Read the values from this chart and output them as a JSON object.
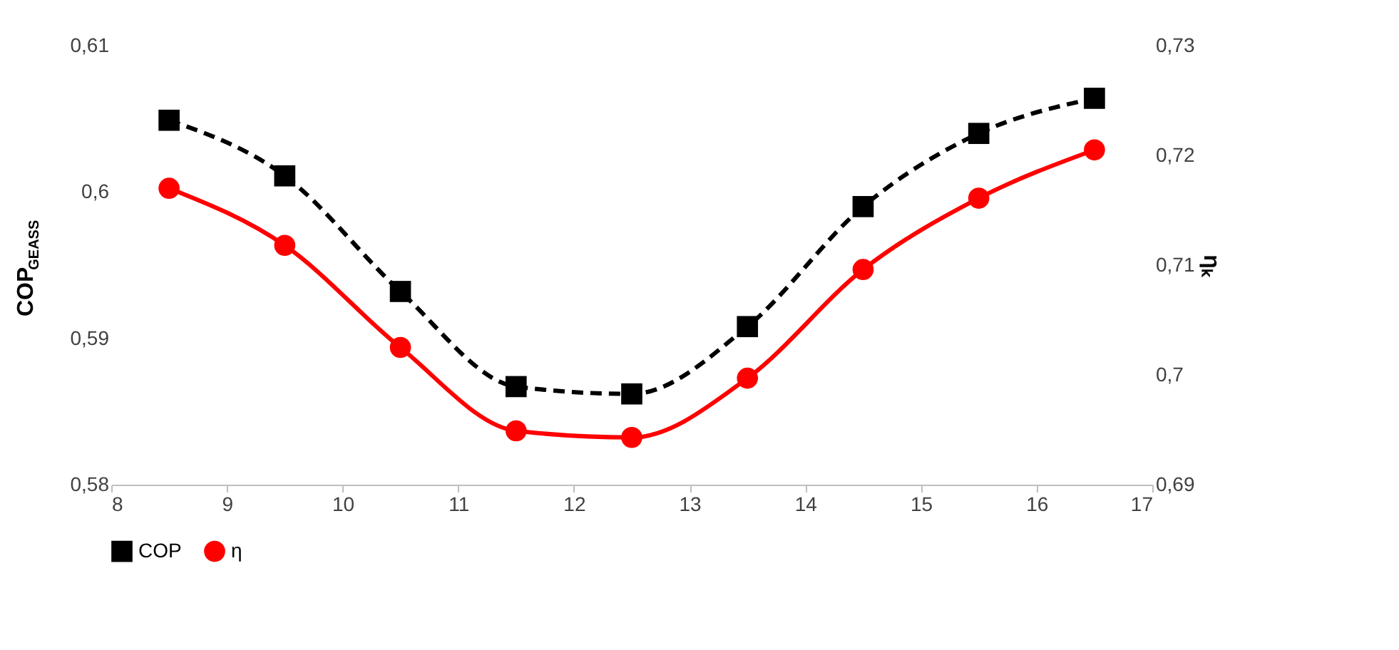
{
  "chart_data": {
    "type": "line",
    "ylabel": "COP$_{GEASS}$",
    "y2label": "ηₖ",
    "x": [
      8.5,
      9.5,
      10.5,
      11.5,
      12.5,
      13.5,
      14.5,
      15.5,
      16.5
    ],
    "xlim": [
      8,
      17
    ],
    "xticks": [
      8,
      9,
      10,
      11,
      12,
      13,
      14,
      15,
      16,
      17
    ],
    "ylim": [
      0.58,
      0.61
    ],
    "yticks": [
      {
        "value": 0.58,
        "label": "0,58"
      },
      {
        "value": 0.59,
        "label": "0,59"
      },
      {
        "value": 0.6,
        "label": "0,6"
      },
      {
        "value": 0.61,
        "label": "0,61"
      }
    ],
    "y2lim": [
      0.69,
      0.73
    ],
    "y2ticks": [
      {
        "value": 0.69,
        "label": "0,69"
      },
      {
        "value": 0.7,
        "label": "0,7"
      },
      {
        "value": 0.71,
        "label": "0,71"
      },
      {
        "value": 0.72,
        "label": "0,72"
      },
      {
        "value": 0.73,
        "label": "0,73"
      }
    ],
    "grid": false,
    "legend": "bottom",
    "series": [
      {
        "name": "COP",
        "color": "#000000",
        "marker": "square",
        "line_style": "dashed",
        "values": [
          0.6049,
          0.6011,
          0.5932,
          0.5867,
          0.5862,
          0.5908,
          0.599,
          0.604,
          0.6064
        ]
      },
      {
        "name": "η",
        "color": "#ff0000",
        "marker": "circle",
        "line_style": "solid",
        "axis": "y2",
        "values": [
          0.717,
          0.7118,
          0.7025,
          0.6949,
          0.6943,
          0.6997,
          0.7096,
          0.7161,
          0.7205
        ]
      }
    ]
  }
}
